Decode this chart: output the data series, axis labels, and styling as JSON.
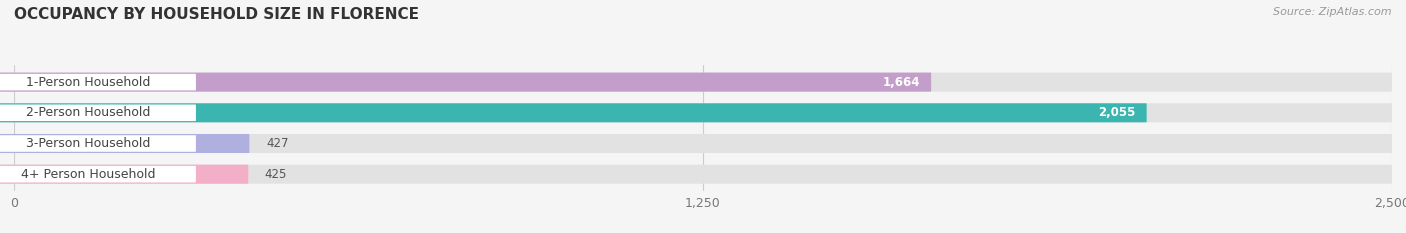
{
  "title": "OCCUPANCY BY HOUSEHOLD SIZE IN FLORENCE",
  "source": "Source: ZipAtlas.com",
  "categories": [
    "1-Person Household",
    "2-Person Household",
    "3-Person Household",
    "4+ Person Household"
  ],
  "values": [
    1664,
    2055,
    427,
    425
  ],
  "bar_colors": [
    "#c49eca",
    "#3ab5b0",
    "#b0b0e0",
    "#f4afc8"
  ],
  "background_color": "#f5f5f5",
  "bar_bg_color": "#e2e2e2",
  "xlim": [
    0,
    2500
  ],
  "xticks": [
    0,
    1250,
    2500
  ],
  "label_fontsize": 9,
  "value_fontsize": 8.5,
  "title_fontsize": 11,
  "source_fontsize": 8
}
